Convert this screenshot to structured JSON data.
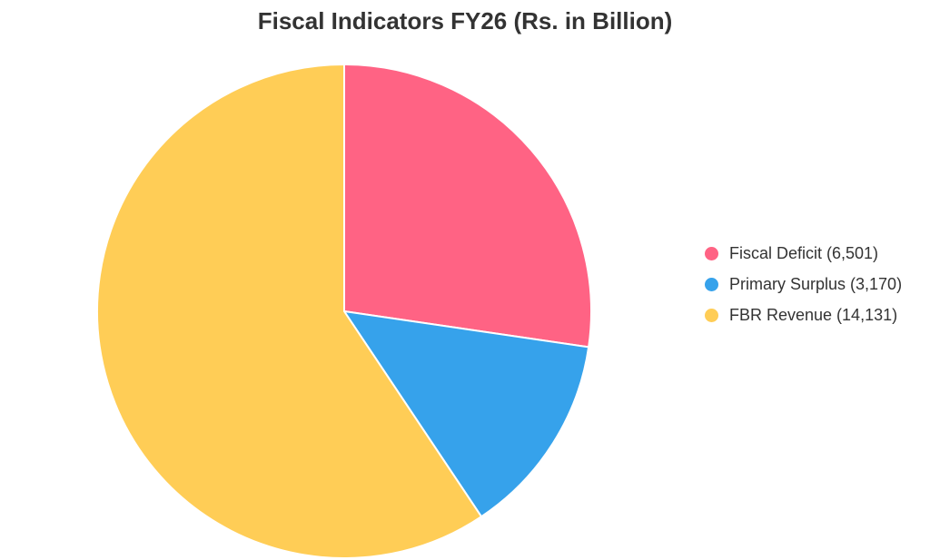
{
  "chart_data": {
    "type": "pie",
    "title": "Fiscal Indicators FY26 (Rs. in Billion)",
    "categories": [
      "Fiscal Deficit (6,501)",
      "Primary Surplus (3,170)",
      "FBR Revenue (14,131)"
    ],
    "values": [
      6501,
      3170,
      14131
    ],
    "colors": [
      "#ff6384",
      "#36a2eb",
      "#ffcd56"
    ],
    "legend": {
      "position": "right",
      "items": [
        {
          "label": "Fiscal Deficit (6,501)",
          "color": "#ff6384"
        },
        {
          "label": "Primary Surplus (3,170)",
          "color": "#36a2eb"
        },
        {
          "label": "FBR Revenue (14,131)",
          "color": "#ffcd56"
        }
      ]
    },
    "start_angle": "top",
    "direction": "clockwise"
  }
}
